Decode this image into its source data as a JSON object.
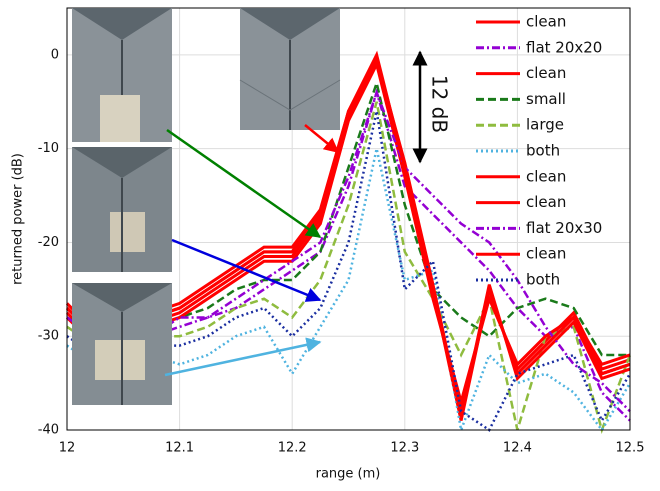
{
  "chart_data": {
    "type": "line",
    "x_label": "range (m)",
    "y_label": "returned power (dB)",
    "x": [
      12,
      12.025,
      12.05,
      12.075,
      12.1,
      12.125,
      12.15,
      12.175,
      12.2,
      12.225,
      12.25,
      12.275,
      12.3,
      12.325,
      12.35,
      12.375,
      12.4,
      12.425,
      12.45,
      12.475,
      12.5
    ],
    "xlim": [
      12,
      12.5
    ],
    "xticks": [
      12,
      12.1,
      12.2,
      12.3,
      12.4,
      12.5
    ],
    "ylim": [
      -40,
      5
    ],
    "yticks": [
      -40,
      -30,
      -20,
      -10,
      0
    ],
    "grid": true,
    "legend": "upper right",
    "annotation": "12 dB",
    "series": [
      {
        "name": "clean",
        "color": "#ff0000",
        "style": "solid",
        "values": [
          -27,
          -30,
          -30,
          -28,
          -27,
          -25,
          -23,
          -21,
          -21,
          -17,
          -6,
          0,
          -12,
          -25,
          -39,
          -25,
          -34,
          -31,
          -28,
          -34,
          -33
        ]
      },
      {
        "name": "flat 20x20",
        "color": "#9400d3",
        "style": "dashdot",
        "values": [
          -28,
          -30,
          -31,
          -30,
          -29,
          -28,
          -27,
          -25,
          -23,
          -21,
          -14,
          -4,
          -14,
          -17,
          -20,
          -23,
          -27,
          -30,
          -29,
          -36,
          -39
        ]
      },
      {
        "name": "clean",
        "color": "#ff0000",
        "style": "solid",
        "values": [
          -27.5,
          -30.5,
          -30.5,
          -28.5,
          -27.5,
          -25.5,
          -23.5,
          -21.5,
          -21.5,
          -17.5,
          -6.5,
          -0.5,
          -12.5,
          -25.5,
          -38,
          -25.5,
          -33.5,
          -30.5,
          -27.5,
          -33.5,
          -32.5
        ]
      },
      {
        "name": "small",
        "color": "#1a7a1a",
        "style": "dashed",
        "values": [
          -28,
          -30,
          -31,
          -29,
          -28,
          -27,
          -25,
          -24,
          -24,
          -21,
          -12,
          -3,
          -16,
          -25,
          -28,
          -30,
          -27,
          -26,
          -27,
          -32,
          -32
        ]
      },
      {
        "name": "large",
        "color": "#8fbc3f",
        "style": "dashed",
        "values": [
          -29,
          -31,
          -32,
          -30,
          -30,
          -29,
          -27,
          -26,
          -28,
          -24,
          -16,
          -5,
          -21,
          -26,
          -32,
          -26,
          -40,
          -30,
          -29,
          -40,
          -32
        ]
      },
      {
        "name": "both",
        "color": "#4fb3e0",
        "style": "dotted",
        "values": [
          -31,
          -33,
          -34,
          -32,
          -33,
          -32,
          -30,
          -29,
          -34,
          -29,
          -24,
          -10,
          -24,
          -23,
          -40,
          -32,
          -35,
          -34,
          -36,
          -40,
          -35
        ]
      },
      {
        "name": "clean",
        "color": "#ff0000",
        "style": "solid",
        "values": [
          -28,
          -31,
          -31,
          -29,
          -28,
          -26,
          -24,
          -22,
          -22,
          -18,
          -7,
          -1,
          -13,
          -26,
          -37,
          -26,
          -33,
          -30,
          -28,
          -33,
          -32
        ]
      },
      {
        "name": "clean",
        "color": "#ff0000",
        "style": "solid",
        "values": [
          -26.5,
          -29.5,
          -29.5,
          -27.5,
          -26.5,
          -24.5,
          -22.5,
          -20.5,
          -20.5,
          -16.5,
          -6,
          -0.5,
          -11.5,
          -24.5,
          -38.5,
          -24.5,
          -34.5,
          -31.5,
          -28.5,
          -34.5,
          -33.5
        ]
      },
      {
        "name": "flat 20x30",
        "color": "#9400d3",
        "style": "dashdot",
        "values": [
          -28,
          -30,
          -31,
          -30,
          -28,
          -28,
          -26,
          -24,
          -22,
          -20,
          -13,
          -4,
          -12,
          -15,
          -18,
          -20,
          -24,
          -29,
          -33,
          -35,
          -38
        ]
      },
      {
        "name": "clean",
        "color": "#ff0000",
        "style": "solid",
        "values": [
          -27,
          -30,
          -30,
          -28,
          -27,
          -25,
          -23,
          -21,
          -21,
          -17,
          -6.5,
          -0.5,
          -12,
          -25,
          -38.5,
          -25,
          -34,
          -31,
          -28,
          -34,
          -33
        ]
      },
      {
        "name": "both",
        "color": "#1a2ea0",
        "style": "dotted",
        "values": [
          -30,
          -32,
          -33,
          -31,
          -31,
          -30,
          -28,
          -27,
          -30,
          -27,
          -20,
          -6,
          -25,
          -22,
          -38,
          -40,
          -34,
          -33,
          -32,
          -39,
          -34
        ]
      }
    ]
  }
}
